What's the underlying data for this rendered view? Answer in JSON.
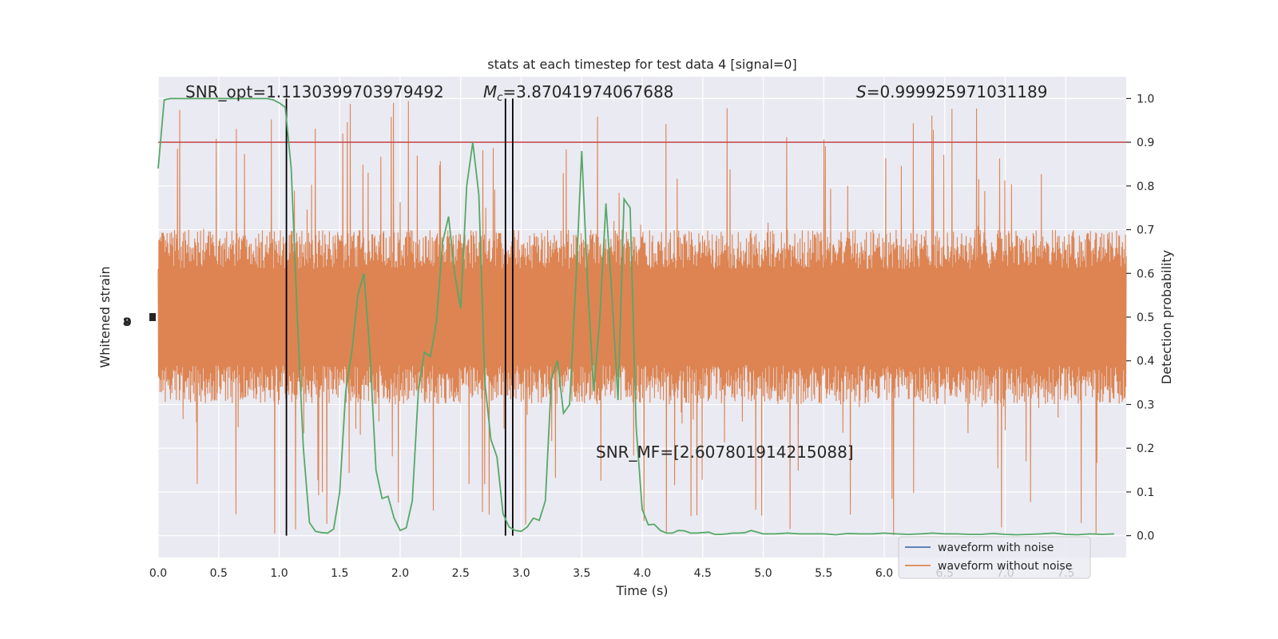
{
  "chart_data": {
    "type": "line",
    "title": "stats at each timestep for test data 4 [signal=0]",
    "xlabel": "Time (s)",
    "ylabel_left": "Whitened strain",
    "ylabel_right": "Detection probability",
    "xlim": [
      0.0,
      8.0
    ],
    "ylim_right": [
      -0.05,
      1.05
    ],
    "x_ticks": [
      "0.0",
      "0.5",
      "1.0",
      "1.5",
      "2.0",
      "2.5",
      "3.0",
      "3.5",
      "4.0",
      "4.5",
      "5.0",
      "5.5",
      "6.0",
      "6.5",
      "7.0",
      "7.5"
    ],
    "y_ticks_right": [
      "0.0",
      "0.1",
      "0.2",
      "0.3",
      "0.4",
      "0.5",
      "0.6",
      "0.7",
      "0.8",
      "0.9",
      "1.0"
    ],
    "grid": true,
    "legend_position": "lower-right",
    "annotations": {
      "snr_opt": "SNR_opt=1.1130399703979492",
      "mc": "=3.87041974067688",
      "mc_symbol": "M",
      "mc_sub": "c",
      "s_symbol": "S",
      "s_value": "=0.999925971031189",
      "snr_mf": "SNR_MF=[2.607801914215088]"
    },
    "threshold": 0.9,
    "vertical_lines": [
      1.06,
      2.87,
      2.93
    ],
    "series": [
      {
        "name": "waveform with noise",
        "color": "#4c72b0",
        "kind": "strain"
      },
      {
        "name": "waveform without noise",
        "color": "#dd8452",
        "kind": "strain",
        "envelope": {
          "typical_amplitude": 0.2,
          "max_amplitude": 0.5
        }
      },
      {
        "color": "#55a868",
        "kind": "probability",
        "x": [
          0.0,
          0.05,
          0.1,
          0.15,
          0.2,
          0.3,
          0.4,
          0.5,
          0.6,
          0.7,
          0.8,
          0.9,
          0.95,
          1.0,
          1.05,
          1.1,
          1.15,
          1.2,
          1.25,
          1.3,
          1.35,
          1.4,
          1.45,
          1.5,
          1.55,
          1.6,
          1.65,
          1.7,
          1.75,
          1.8,
          1.85,
          1.9,
          1.95,
          2.0,
          2.05,
          2.1,
          2.15,
          2.2,
          2.25,
          2.3,
          2.35,
          2.4,
          2.45,
          2.5,
          2.55,
          2.6,
          2.65,
          2.7,
          2.75,
          2.8,
          2.85,
          2.9,
          2.95,
          3.0,
          3.05,
          3.1,
          3.15,
          3.2,
          3.25,
          3.3,
          3.35,
          3.4,
          3.45,
          3.5,
          3.55,
          3.6,
          3.65,
          3.7,
          3.75,
          3.8,
          3.85,
          3.9,
          3.95,
          4.0,
          4.05,
          4.1,
          4.15,
          4.2,
          4.25,
          4.3,
          4.35,
          4.4,
          4.45,
          4.5,
          4.55,
          4.6,
          4.65,
          4.7,
          4.75,
          4.8,
          4.85,
          4.9,
          4.95,
          5.0,
          5.1,
          5.2,
          5.3,
          5.4,
          5.5,
          5.6,
          5.7,
          5.8,
          5.9,
          6.0,
          6.1,
          6.2,
          6.3,
          6.4,
          6.5,
          6.6,
          6.7,
          6.8,
          6.9,
          7.0,
          7.1,
          7.2,
          7.3,
          7.4,
          7.5,
          7.6,
          7.7,
          7.8,
          7.9
        ],
        "y": [
          0.84,
          0.997,
          1.0,
          1.0,
          1.0,
          1.0,
          1.0,
          1.0,
          1.0,
          1.0,
          1.0,
          1.0,
          0.997,
          0.99,
          0.98,
          0.84,
          0.5,
          0.2,
          0.03,
          0.01,
          0.007,
          0.006,
          0.015,
          0.1,
          0.33,
          0.42,
          0.55,
          0.6,
          0.42,
          0.15,
          0.085,
          0.09,
          0.04,
          0.012,
          0.018,
          0.08,
          0.33,
          0.42,
          0.41,
          0.49,
          0.67,
          0.73,
          0.6,
          0.52,
          0.8,
          0.9,
          0.78,
          0.35,
          0.22,
          0.18,
          0.05,
          0.02,
          0.012,
          0.01,
          0.02,
          0.04,
          0.035,
          0.08,
          0.36,
          0.4,
          0.28,
          0.3,
          0.57,
          0.88,
          0.57,
          0.33,
          0.5,
          0.76,
          0.55,
          0.31,
          0.77,
          0.75,
          0.25,
          0.06,
          0.025,
          0.026,
          0.012,
          0.006,
          0.006,
          0.012,
          0.011,
          0.006,
          0.006,
          0.007,
          0.008,
          0.003,
          0.003,
          0.004,
          0.006,
          0.006,
          0.007,
          0.012,
          0.008,
          0.004,
          0.004,
          0.006,
          0.004,
          0.004,
          0.004,
          0.002,
          0.005,
          0.004,
          0.004,
          0.006,
          0.004,
          0.003,
          0.004,
          0.006,
          0.004,
          0.004,
          0.003,
          0.003,
          0.005,
          0.003,
          0.002,
          0.003,
          0.004,
          0.006,
          0.003,
          0.002,
          0.004,
          0.003,
          0.004
        ]
      }
    ]
  },
  "left_axis_glyph": "-8.0"
}
